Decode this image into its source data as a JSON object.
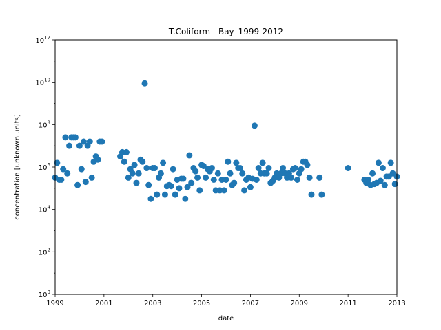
{
  "chart_data": {
    "type": "scatter",
    "title": "T.Coliform - Bay_1999-2012",
    "xlabel": "date",
    "ylabel": "concentration [unknown units]",
    "yscale": "log",
    "ylim_exponent": [
      0,
      12
    ],
    "xlim": [
      1999.0,
      2013.0
    ],
    "x_ticks": [
      "1999",
      "2001",
      "2003",
      "2005",
      "2007",
      "2009",
      "2011",
      "2013"
    ],
    "y_ticks": [
      {
        "base": "10",
        "exp": "0"
      },
      {
        "base": "10",
        "exp": "2"
      },
      {
        "base": "10",
        "exp": "4"
      },
      {
        "base": "10",
        "exp": "6"
      },
      {
        "base": "10",
        "exp": "8"
      },
      {
        "base": "10",
        "exp": "10"
      },
      {
        "base": "10",
        "exp": "12"
      }
    ],
    "grid": false,
    "legend": "none",
    "marker_color": "#1f77b4",
    "series": [
      {
        "x": [
          1999.0,
          1999.08,
          1999.17,
          1999.25,
          1999.33,
          1999.42,
          1999.5,
          1999.58,
          1999.67,
          1999.75,
          1999.83,
          1999.92,
          2000.0,
          2000.08,
          2000.17,
          2000.25,
          2000.33,
          2000.42,
          2000.5,
          2000.58,
          2000.67,
          2000.75,
          2000.83,
          2000.92,
          2001.67,
          2001.75,
          2001.83,
          2001.92,
          2002.0,
          2002.08,
          2002.17,
          2002.25,
          2002.33,
          2002.42,
          2002.5,
          2002.58,
          2002.67,
          2002.75,
          2002.83,
          2002.92,
          2003.0,
          2003.08,
          2003.17,
          2003.25,
          2003.33,
          2003.42,
          2003.5,
          2003.58,
          2003.67,
          2003.75,
          2003.83,
          2003.92,
          2004.0,
          2004.08,
          2004.17,
          2004.25,
          2004.33,
          2004.42,
          2004.5,
          2004.58,
          2004.67,
          2004.75,
          2004.83,
          2004.92,
          2005.0,
          2005.08,
          2005.17,
          2005.25,
          2005.33,
          2005.42,
          2005.5,
          2005.58,
          2005.67,
          2005.75,
          2005.83,
          2005.92,
          2006.0,
          2006.08,
          2006.17,
          2006.25,
          2006.33,
          2006.42,
          2006.5,
          2006.58,
          2006.67,
          2006.75,
          2006.83,
          2006.92,
          2007.0,
          2007.08,
          2007.17,
          2007.25,
          2007.33,
          2007.42,
          2007.5,
          2007.58,
          2007.67,
          2007.75,
          2007.83,
          2007.92,
          2008.0,
          2008.08,
          2008.17,
          2008.25,
          2008.33,
          2008.42,
          2008.5,
          2008.58,
          2008.67,
          2008.75,
          2008.83,
          2008.92,
          2009.0,
          2009.08,
          2009.17,
          2009.25,
          2009.33,
          2009.42,
          2009.5,
          2009.83,
          2009.92,
          2011.0,
          2011.67,
          2011.75,
          2011.83,
          2011.92,
          2012.0,
          2012.08,
          2012.17,
          2012.25,
          2012.33,
          2012.42,
          2012.5,
          2012.58,
          2012.67,
          2012.75,
          2012.83,
          2012.92,
          2013.0
        ],
        "y_exp": [
          5.5,
          6.2,
          5.4,
          5.4,
          5.9,
          7.4,
          5.7,
          7.0,
          7.4,
          7.4,
          7.4,
          5.15,
          7.0,
          5.9,
          7.2,
          5.3,
          7.0,
          7.2,
          5.5,
          6.25,
          6.5,
          6.35,
          7.2,
          7.2,
          6.5,
          6.7,
          6.25,
          6.7,
          5.5,
          5.9,
          5.7,
          6.1,
          5.25,
          5.7,
          6.35,
          6.25,
          9.95,
          5.95,
          5.15,
          4.5,
          5.95,
          5.95,
          4.7,
          5.5,
          5.7,
          6.2,
          4.7,
          5.1,
          5.15,
          5.1,
          5.9,
          4.7,
          5.4,
          5.0,
          5.45,
          5.45,
          4.5,
          5.05,
          6.55,
          5.25,
          5.95,
          5.8,
          5.5,
          4.9,
          6.1,
          6.05,
          5.5,
          5.9,
          5.8,
          5.95,
          5.4,
          4.9,
          5.7,
          4.9,
          5.4,
          4.9,
          5.4,
          6.25,
          5.7,
          5.15,
          5.25,
          6.2,
          5.95,
          5.95,
          5.7,
          4.9,
          5.4,
          5.5,
          5.05,
          5.45,
          7.95,
          5.4,
          5.95,
          5.7,
          6.2,
          5.7,
          5.7,
          5.95,
          5.25,
          5.35,
          5.5,
          5.7,
          5.5,
          5.7,
          5.95,
          5.7,
          5.5,
          5.7,
          5.5,
          5.9,
          5.95,
          5.4,
          5.7,
          5.9,
          6.25,
          6.25,
          6.1,
          5.5,
          4.7,
          5.5,
          4.7,
          5.95,
          5.4,
          5.25,
          5.4,
          5.15,
          5.7,
          5.2,
          5.25,
          6.2,
          5.35,
          5.95,
          5.15,
          5.55,
          5.55,
          6.2,
          5.7,
          5.2,
          5.55
        ]
      }
    ]
  }
}
